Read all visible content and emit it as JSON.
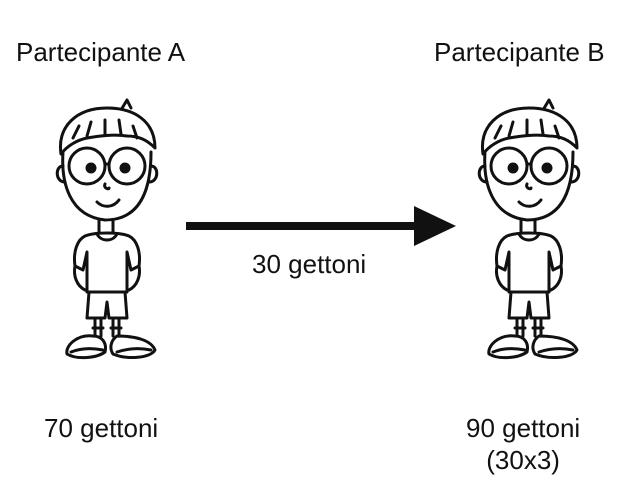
{
  "participant_a": {
    "title": "Partecipante A",
    "tokens": "70 gettoni"
  },
  "participant_b": {
    "title": "Partecipante B",
    "tokens": "90 gettoni",
    "calculation": "(30x3)"
  },
  "transfer": {
    "label": "30 gettoni",
    "direction": "A to B"
  },
  "colors": {
    "ink": "#111111",
    "background": "#ffffff"
  }
}
